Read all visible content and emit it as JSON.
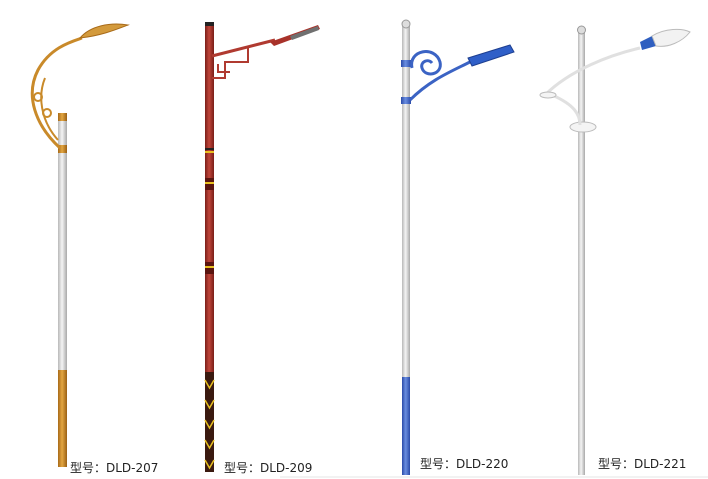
{
  "products": [
    {
      "model_label": "型号：DLD-207",
      "pole_color": "#d9d9d9",
      "accent_color": "#c98a2a"
    },
    {
      "model_label": "型号：DLD-209",
      "pole_color": "#a8322a",
      "accent_color": "#e8c020"
    },
    {
      "model_label": "型号：DLD-220",
      "pole_color": "#d9d9d9",
      "accent_color": "#3b63c4"
    },
    {
      "model_label": "型号：DLD-221",
      "pole_color": "#d9d9d9",
      "accent_color": "#2f5fc0"
    }
  ]
}
